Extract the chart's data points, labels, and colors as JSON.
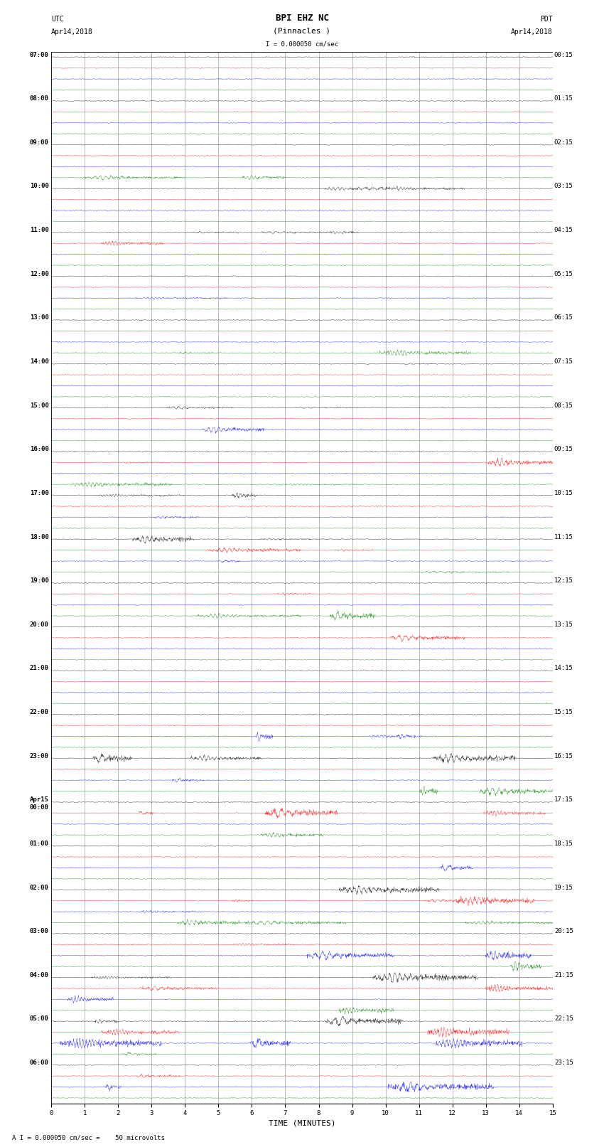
{
  "title_line1": "BPI EHZ NC",
  "title_line2": "(Pinnacles )",
  "scale_label": "I = 0.000050 cm/sec",
  "utc_label1": "UTC",
  "utc_label2": "Apr14,2018",
  "pdt_label1": "PDT",
  "pdt_label2": "Apr14,2018",
  "xlabel": "TIME (MINUTES)",
  "bottom_label": "A I = 0.000050 cm/sec =    50 microvolts",
  "left_times": [
    "07:00",
    "08:00",
    "09:00",
    "10:00",
    "11:00",
    "12:00",
    "13:00",
    "14:00",
    "15:00",
    "16:00",
    "17:00",
    "18:00",
    "19:00",
    "20:00",
    "21:00",
    "22:00",
    "23:00",
    "Apr15\n00:00",
    "01:00",
    "02:00",
    "03:00",
    "04:00",
    "05:00",
    "06:00"
  ],
  "right_times": [
    "00:15",
    "01:15",
    "02:15",
    "03:15",
    "04:15",
    "05:15",
    "06:15",
    "07:15",
    "08:15",
    "09:15",
    "10:15",
    "11:15",
    "12:15",
    "13:15",
    "14:15",
    "15:15",
    "16:15",
    "17:15",
    "18:15",
    "19:15",
    "20:15",
    "21:15",
    "22:15",
    "23:15"
  ],
  "num_rows": 96,
  "colors_cycle": [
    "black",
    "red",
    "blue",
    "green"
  ],
  "bg_color": "#ffffff",
  "xmin": 0,
  "xmax": 15,
  "title_fontsize": 9,
  "label_fontsize": 7,
  "tick_fontsize": 6.5
}
